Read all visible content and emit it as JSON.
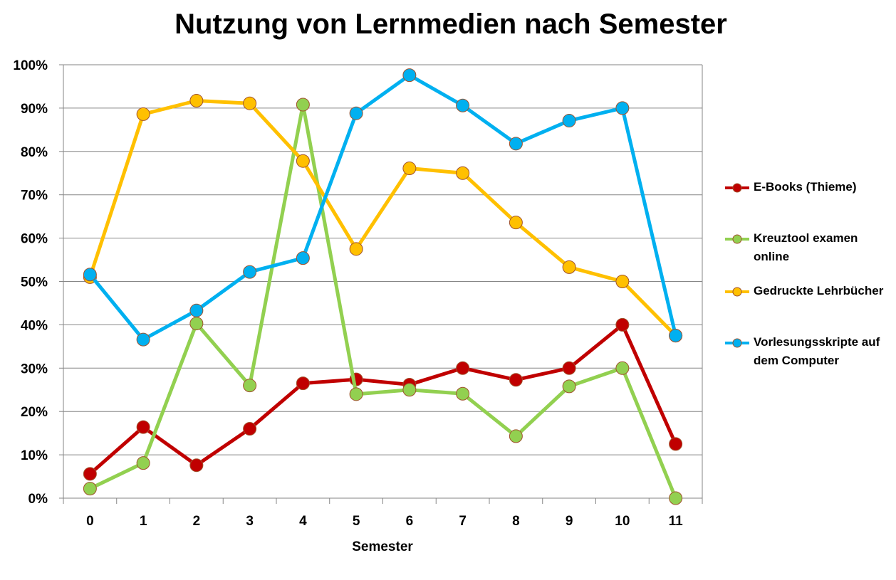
{
  "chart_data": {
    "type": "line",
    "title": "Nutzung von Lernmedien nach Semester",
    "xlabel": "Semester",
    "ylabel": "",
    "categories": [
      "0",
      "1",
      "2",
      "3",
      "4",
      "5",
      "6",
      "7",
      "8",
      "9",
      "10",
      "11"
    ],
    "y_ticks": [
      "0%",
      "10%",
      "20%",
      "30%",
      "40%",
      "50%",
      "60%",
      "70%",
      "80%",
      "90%",
      "100%"
    ],
    "ylim": [
      0,
      100
    ],
    "grid": true,
    "legend_position": "right",
    "series": [
      {
        "name": "E-Books (Thieme)",
        "color": "#c00000",
        "values": [
          5.6,
          16.4,
          7.6,
          16.0,
          26.5,
          27.4,
          26.2,
          30.0,
          27.3,
          30.0,
          40.0,
          12.5
        ]
      },
      {
        "name": "Kreuztool examen online",
        "color": "#92d050",
        "values": [
          2.2,
          8.1,
          40.3,
          26.0,
          90.8,
          24.0,
          25.0,
          24.1,
          14.3,
          25.8,
          30.0,
          0.0
        ]
      },
      {
        "name": "Gedruckte Lehrbücher",
        "color": "#ffc000",
        "values": [
          51.0,
          88.6,
          91.7,
          91.1,
          77.8,
          57.5,
          76.1,
          75.0,
          63.6,
          53.3,
          50.0,
          37.5
        ]
      },
      {
        "name": "Vorlesungsskripte auf dem Computer",
        "color": "#00b0f0",
        "values": [
          51.6,
          36.6,
          43.3,
          52.2,
          55.4,
          88.8,
          97.6,
          90.6,
          81.8,
          87.1,
          90.0,
          37.5
        ]
      }
    ]
  }
}
